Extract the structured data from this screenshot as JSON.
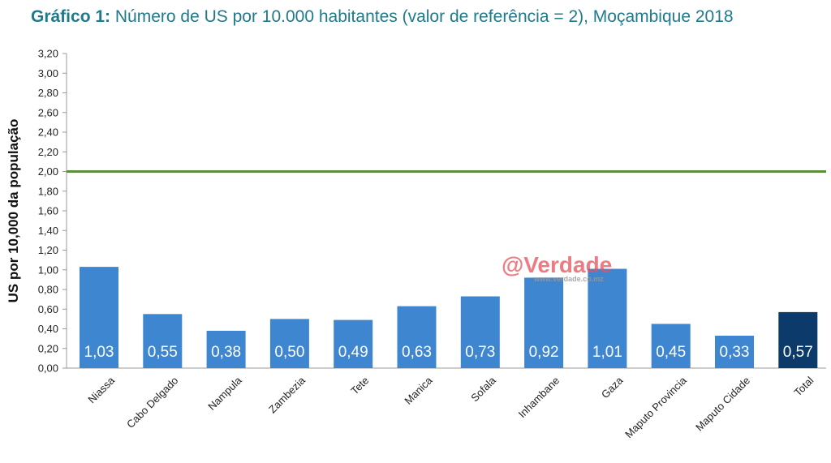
{
  "title": {
    "prefix": "Gráfico 1:",
    "text": "Número de US por 10.000 habitantes (valor de referência = 2), Moçambique 2018"
  },
  "watermark": {
    "main": "@Verdade",
    "sub": "www.verdade.co.mz"
  },
  "colors": {
    "bar": "#3f86d0",
    "total_bar": "#0b3a6b",
    "reference_line": "#5b8f3c",
    "title": "#1f7a8c"
  },
  "chart_data": {
    "type": "bar",
    "ylabel": "US por 10,000 da população",
    "xlabel": "",
    "ylim": [
      0,
      3.2
    ],
    "yticks": [
      "0,00",
      "0,20",
      "0,40",
      "0,60",
      "0,80",
      "1,00",
      "1,20",
      "1,40",
      "1,60",
      "1,80",
      "2,00",
      "2,20",
      "2,40",
      "2,60",
      "2,80",
      "3,00",
      "3,20"
    ],
    "categories": [
      "Niassa",
      "Cabo Delgado",
      "Nampula",
      "Zambezia",
      "Tete",
      "Manica",
      "Sofala",
      "Inhambane",
      "Gaza",
      "Maputo Provincia",
      "Maputo Cidade",
      "Total"
    ],
    "values": [
      1.03,
      0.55,
      0.38,
      0.5,
      0.49,
      0.63,
      0.73,
      0.92,
      1.01,
      0.45,
      0.33,
      0.57
    ],
    "data_labels": [
      "1,03",
      "0,55",
      "0,38",
      "0,50",
      "0,49",
      "0,63",
      "0,73",
      "0,92",
      "1,01",
      "0,45",
      "0,33",
      "0,57"
    ],
    "reference_value": 2.0,
    "grid": false,
    "legend": "none"
  }
}
